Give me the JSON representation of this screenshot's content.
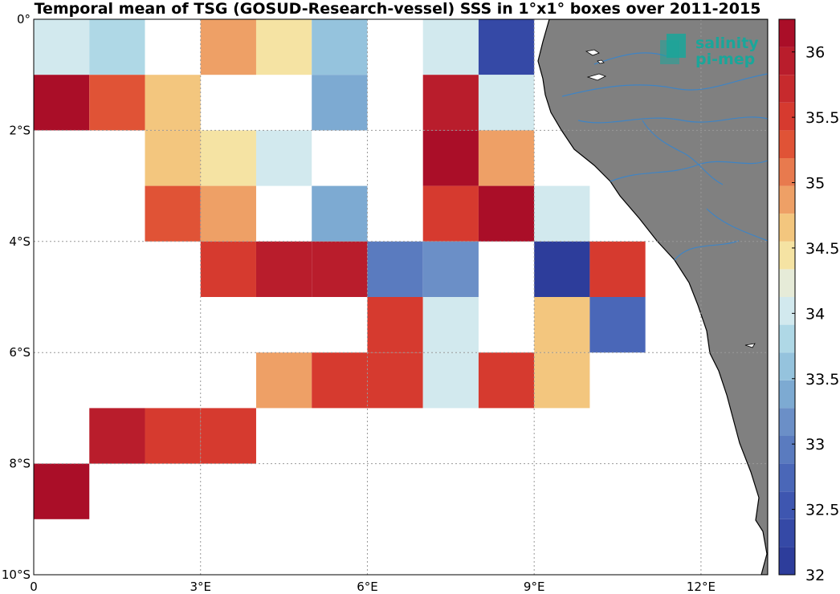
{
  "title": "Temporal mean of TSG (GOSUD-Research-vessel) SSS in 1°x1° boxes over 2011-2015",
  "logo": {
    "line1": "salinity",
    "line2": "pi-mep"
  },
  "axes": {
    "lon_range": [
      0,
      13.2
    ],
    "lat_range": [
      -10,
      0
    ],
    "x_ticks": [
      {
        "value": 0,
        "label": "0"
      },
      {
        "value": 3,
        "label": "3°E"
      },
      {
        "value": 6,
        "label": "6°E"
      },
      {
        "value": 9,
        "label": "9°E"
      },
      {
        "value": 12,
        "label": "12°E"
      }
    ],
    "y_ticks": [
      {
        "value": 0,
        "label": "0°"
      },
      {
        "value": -2,
        "label": "2°S"
      },
      {
        "value": -4,
        "label": "4°S"
      },
      {
        "value": -6,
        "label": "6°S"
      },
      {
        "value": -8,
        "label": "8°S"
      },
      {
        "value": -10,
        "label": "10°S"
      }
    ]
  },
  "colorbar": {
    "range": [
      32,
      36.25
    ],
    "ticks": [
      "32",
      "32.5",
      "33",
      "33.5",
      "34",
      "34.5",
      "35",
      "35.5",
      "36"
    ],
    "colors": [
      "#2d3d9b",
      "#3549a6",
      "#3e56b0",
      "#4a67b8",
      "#5a7bbf",
      "#6b8fc7",
      "#7daad2",
      "#95c3dd",
      "#afd8e6",
      "#d2e9ee",
      "#e6ebd8",
      "#f5e3a3",
      "#f3c67e",
      "#eea066",
      "#e87a4e",
      "#e05336",
      "#d63a2f",
      "#c72a2d",
      "#b91d2c",
      "#aa0e28"
    ]
  },
  "chart_data": {
    "type": "heatmap",
    "title": "Temporal mean of TSG (GOSUD-Research-vessel) SSS in 1°x1° boxes over 2011-2015",
    "cell_size_deg": 1,
    "cells": [
      {
        "lon": 0,
        "lat": 0,
        "sss": 33.95
      },
      {
        "lon": 1,
        "lat": 0,
        "sss": 33.7
      },
      {
        "lon": 3,
        "lat": 0,
        "sss": 34.9
      },
      {
        "lon": 4,
        "lat": 0,
        "sss": 34.4
      },
      {
        "lon": 5,
        "lat": 0,
        "sss": 33.65
      },
      {
        "lon": 7,
        "lat": 0,
        "sss": 33.95
      },
      {
        "lon": 8,
        "lat": 0,
        "sss": 32.3
      },
      {
        "lon": 0,
        "lat": -1,
        "sss": 36.1
      },
      {
        "lon": 1,
        "lat": -1,
        "sss": 35.2
      },
      {
        "lon": 2,
        "lat": -1,
        "sss": 34.7
      },
      {
        "lon": 5,
        "lat": -1,
        "sss": 33.4
      },
      {
        "lon": 7,
        "lat": -1,
        "sss": 35.9
      },
      {
        "lon": 8,
        "lat": -1,
        "sss": 33.95
      },
      {
        "lon": 2,
        "lat": -2,
        "sss": 34.7
      },
      {
        "lon": 3,
        "lat": -2,
        "sss": 34.4
      },
      {
        "lon": 4,
        "lat": -2,
        "sss": 34.1
      },
      {
        "lon": 7,
        "lat": -2,
        "sss": 36.1
      },
      {
        "lon": 8,
        "lat": -2,
        "sss": 34.9
      },
      {
        "lon": 2,
        "lat": -3,
        "sss": 35.2
      },
      {
        "lon": 3,
        "lat": -3,
        "sss": 34.9
      },
      {
        "lon": 5,
        "lat": -3,
        "sss": 33.4
      },
      {
        "lon": 7,
        "lat": -3,
        "sss": 35.45
      },
      {
        "lon": 8,
        "lat": -3,
        "sss": 36.1
      },
      {
        "lon": 9,
        "lat": -3,
        "sss": 34.1
      },
      {
        "lon": 3,
        "lat": -4,
        "sss": 35.6
      },
      {
        "lon": 4,
        "lat": -4,
        "sss": 35.85
      },
      {
        "lon": 5,
        "lat": -4,
        "sss": 35.85
      },
      {
        "lon": 6,
        "lat": -4,
        "sss": 32.85
      },
      {
        "lon": 7,
        "lat": -4,
        "sss": 33.1
      },
      {
        "lon": 9,
        "lat": -4,
        "sss": 32.1
      },
      {
        "lon": 10,
        "lat": -4,
        "sss": 35.6
      },
      {
        "lon": 6,
        "lat": -5,
        "sss": 35.6
      },
      {
        "lon": 7,
        "lat": -5,
        "sss": 33.95
      },
      {
        "lon": 9,
        "lat": -5,
        "sss": 34.7
      },
      {
        "lon": 10,
        "lat": -5,
        "sss": 32.65
      },
      {
        "lon": 4,
        "lat": -6,
        "sss": 34.9
      },
      {
        "lon": 5,
        "lat": -6,
        "sss": 35.6
      },
      {
        "lon": 6,
        "lat": -6,
        "sss": 35.6
      },
      {
        "lon": 7,
        "lat": -6,
        "sss": 34.1
      },
      {
        "lon": 8,
        "lat": -6,
        "sss": 35.45
      },
      {
        "lon": 9,
        "lat": -6,
        "sss": 34.6
      },
      {
        "lon": 1,
        "lat": -7,
        "sss": 35.85
      },
      {
        "lon": 2,
        "lat": -7,
        "sss": 35.45
      },
      {
        "lon": 3,
        "lat": -7,
        "sss": 35.45
      },
      {
        "lon": 0,
        "lat": -8,
        "sss": 36.1
      }
    ]
  }
}
